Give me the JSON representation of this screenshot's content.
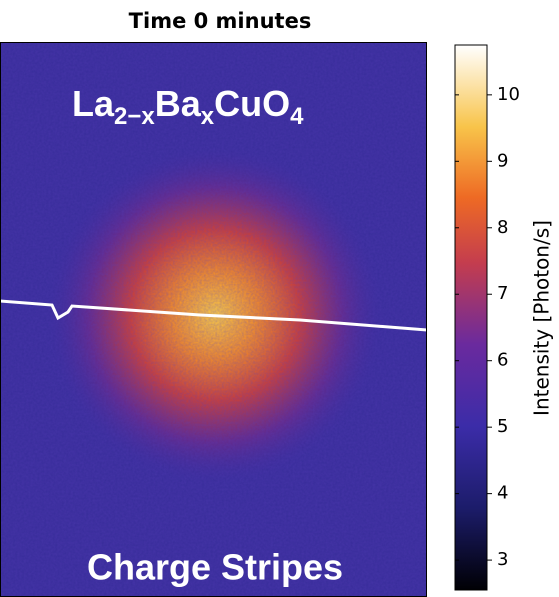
{
  "chart_data": {
    "type": "heatmap",
    "title": "Time 0 minutes",
    "annotations": {
      "formula": [
        "La",
        "2−x",
        "Ba",
        "x",
        "CuO",
        "4"
      ],
      "label": "Charge Stripes"
    },
    "colorbar": {
      "label": "Intensity [Photon/s]",
      "zlim": [
        2.55,
        10.75
      ],
      "zticks": [
        3,
        4,
        5,
        6,
        7,
        8,
        9,
        10
      ]
    }
  }
}
